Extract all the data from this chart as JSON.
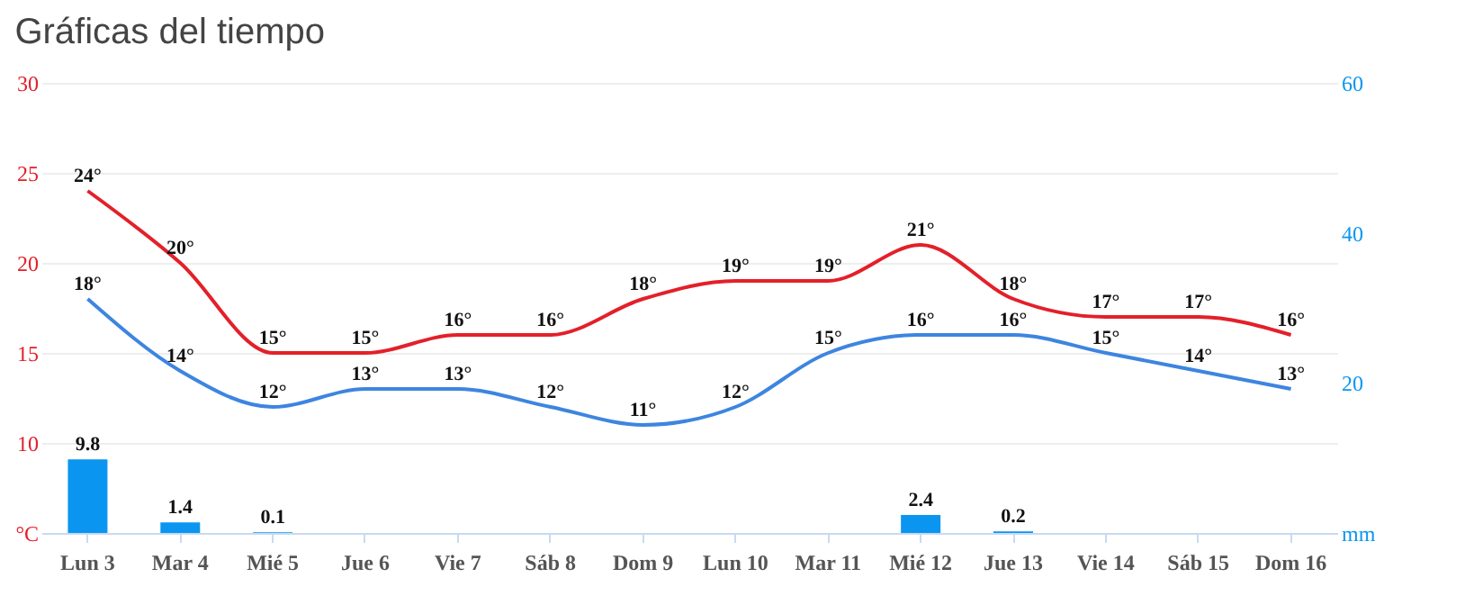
{
  "chart_data": {
    "type": "line",
    "title": "Gráficas del tiempo",
    "categories": [
      "Lun 3",
      "Mar 4",
      "Mié 5",
      "Jue 6",
      "Vie 7",
      "Sáb 8",
      "Dom 9",
      "Lun 10",
      "Mar 11",
      "Mié 12",
      "Jue 13",
      "Vie 14",
      "Sáb 15",
      "Dom 16"
    ],
    "series": [
      {
        "type": "bar",
        "axis": "y2",
        "color": "#0a96f0",
        "values": [
          9.8,
          1.4,
          0.1,
          null,
          null,
          null,
          null,
          null,
          null,
          2.4,
          0.2,
          null,
          null,
          null
        ],
        "value_labels": [
          "9.8",
          "1.4",
          "0.1",
          null,
          null,
          null,
          null,
          null,
          null,
          "2.4",
          "0.2",
          null,
          null,
          null
        ]
      },
      {
        "color": "#e3202a",
        "values": [
          24,
          20,
          15,
          15,
          16,
          16,
          18,
          19,
          19,
          21,
          18,
          17,
          17,
          16
        ],
        "value_labels": [
          "24°",
          "20°",
          "15°",
          "15°",
          "16°",
          "16°",
          "18°",
          "19°",
          "19°",
          "21°",
          "18°",
          "17°",
          "17°",
          "16°"
        ]
      },
      {
        "color": "#3d85e0",
        "values": [
          18,
          14,
          12,
          13,
          13,
          12,
          11,
          12,
          15,
          16,
          16,
          15,
          14,
          13
        ],
        "value_labels": [
          "18°",
          "14°",
          "12°",
          "13°",
          "13°",
          "12°",
          "11°",
          "12°",
          "15°",
          "16°",
          "16°",
          "15°",
          "14°",
          "13°"
        ]
      }
    ],
    "ylim": [
      5,
      30
    ],
    "yticks": [
      {
        "value": 5,
        "label": "°C"
      },
      10,
      15,
      20,
      25,
      30
    ],
    "y2lim": [
      0,
      60
    ],
    "y2ticks": [
      {
        "value": 0,
        "label": "mm"
      },
      20,
      40,
      60
    ],
    "grid": "y",
    "legend": false
  }
}
